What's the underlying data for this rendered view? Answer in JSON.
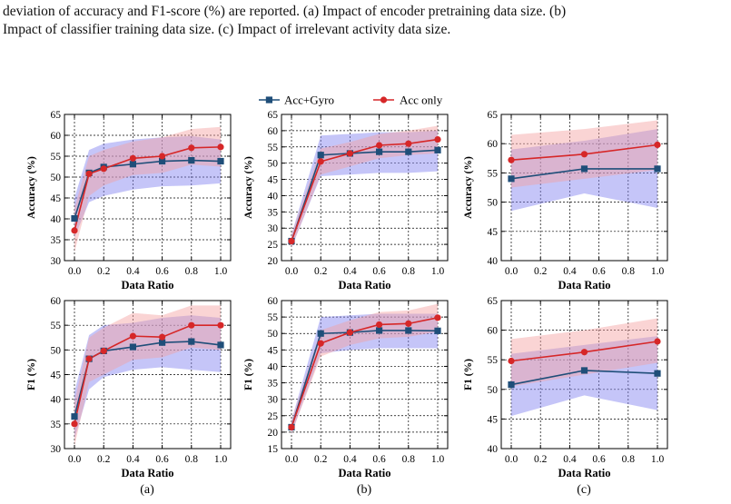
{
  "caption": {
    "line1": "deviation of accuracy and F1-score (%) are reported. (a) Impact of encoder pretraining data size. (b)",
    "line2": "Impact of classifier training data size. (c) Impact of irrelevant activity data size."
  },
  "colors": {
    "acc_gyro": "#1f4e79",
    "acc_only": "#d62728",
    "acc_gyro_band": "#7f7ff0",
    "acc_only_band": "#f4a0a0"
  },
  "legend": [
    "Acc+Gyro",
    "Acc only"
  ],
  "chart_data": [
    {
      "type": "line",
      "panel": "(a)",
      "metric": "accuracy",
      "xlabel": "Data Ratio",
      "ylabel": "Accuracy (%)",
      "x": [
        0.0,
        0.1,
        0.2,
        0.4,
        0.6,
        0.8,
        1.0
      ],
      "xticks": [
        0.0,
        0.2,
        0.4,
        0.6,
        0.8,
        1.0
      ],
      "xticklabels": [
        "0.0",
        "0.2",
        "0.4",
        "0.6",
        "0.8",
        "1.0"
      ],
      "ylim": [
        30,
        65
      ],
      "yticks": [
        30,
        35,
        40,
        45,
        50,
        55,
        60,
        65
      ],
      "series": [
        {
          "name": "Acc+Gyro",
          "values": [
            40.1,
            51.0,
            52.4,
            53.1,
            53.8,
            54.0,
            53.8
          ],
          "lower": [
            35.5,
            44.0,
            45.5,
            47.0,
            47.8,
            48.0,
            48.5
          ],
          "upper": [
            45.0,
            56.5,
            58.0,
            59.0,
            59.5,
            59.8,
            59.0
          ]
        },
        {
          "name": "Acc only",
          "values": [
            37.2,
            50.8,
            52.0,
            54.5,
            55.0,
            57.0,
            57.2
          ],
          "lower": [
            32.0,
            45.5,
            48.0,
            50.5,
            51.0,
            53.0,
            52.5
          ],
          "upper": [
            42.5,
            55.0,
            56.5,
            58.5,
            59.5,
            61.5,
            62.0
          ]
        }
      ]
    },
    {
      "type": "line",
      "panel": "(b)",
      "metric": "accuracy",
      "xlabel": "Data Ratio",
      "ylabel": "Accuracy (%)",
      "x": [
        0.0,
        0.2,
        0.4,
        0.6,
        0.8,
        1.0
      ],
      "xticks": [
        0.0,
        0.2,
        0.4,
        0.6,
        0.8,
        1.0
      ],
      "xticklabels": [
        "0.0",
        "0.2",
        "0.4",
        "0.6",
        "0.8",
        "1.0"
      ],
      "ylim": [
        20,
        65
      ],
      "yticks": [
        20,
        25,
        30,
        35,
        40,
        45,
        50,
        55,
        60,
        65
      ],
      "series": [
        {
          "name": "Acc+Gyro",
          "values": [
            26.0,
            52.5,
            53.0,
            53.5,
            53.5,
            54.0
          ],
          "lower": [
            24.0,
            46.0,
            46.5,
            47.0,
            47.0,
            47.5
          ],
          "upper": [
            28.0,
            58.5,
            59.0,
            59.5,
            59.5,
            60.0
          ]
        },
        {
          "name": "Acc only",
          "values": [
            26.0,
            50.5,
            53.0,
            55.5,
            56.0,
            57.3
          ],
          "lower": [
            24.0,
            46.5,
            49.0,
            51.5,
            52.5,
            53.0
          ],
          "upper": [
            28.0,
            54.5,
            56.5,
            59.0,
            60.0,
            61.5
          ]
        }
      ]
    },
    {
      "type": "line",
      "panel": "(c)",
      "metric": "accuracy",
      "xlabel": "Data Ratio",
      "ylabel": "Accuracy (%)",
      "x": [
        0.0,
        0.5,
        1.0
      ],
      "xticks": [
        0.0,
        0.2,
        0.4,
        0.6,
        0.8,
        1.0
      ],
      "xticklabels": [
        "0.0",
        "0.2",
        "0.4",
        "0.6",
        "0.8",
        "1.0"
      ],
      "ylim": [
        40,
        65
      ],
      "yticks": [
        40,
        45,
        50,
        55,
        60,
        65
      ],
      "series": [
        {
          "name": "Acc+Gyro",
          "values": [
            54.0,
            55.7,
            55.7
          ],
          "lower": [
            48.5,
            51.5,
            49.0
          ],
          "upper": [
            59.0,
            60.5,
            62.5
          ]
        },
        {
          "name": "Acc only",
          "values": [
            57.2,
            58.2,
            59.8
          ],
          "lower": [
            52.5,
            54.0,
            55.5
          ],
          "upper": [
            61.5,
            62.5,
            64.0
          ]
        }
      ]
    },
    {
      "type": "line",
      "panel": "(a)",
      "metric": "f1",
      "xlabel": "Data Ratio",
      "ylabel": "F1 (%)",
      "x": [
        0.0,
        0.1,
        0.2,
        0.4,
        0.6,
        0.8,
        1.0
      ],
      "xticks": [
        0.0,
        0.2,
        0.4,
        0.6,
        0.8,
        1.0
      ],
      "xticklabels": [
        "0.0",
        "0.2",
        "0.4",
        "0.6",
        "0.8",
        "1.0"
      ],
      "ylim": [
        30,
        60
      ],
      "yticks": [
        30,
        35,
        40,
        45,
        50,
        55,
        60
      ],
      "series": [
        {
          "name": "Acc+Gyro",
          "values": [
            36.5,
            48.2,
            49.8,
            50.6,
            51.5,
            51.7,
            51.0
          ],
          "lower": [
            32.0,
            42.0,
            44.5,
            46.0,
            46.5,
            46.0,
            45.5
          ],
          "upper": [
            41.5,
            53.0,
            55.0,
            55.5,
            56.5,
            57.0,
            56.5
          ]
        },
        {
          "name": "Acc only",
          "values": [
            35.0,
            48.2,
            49.8,
            52.8,
            52.6,
            55.0,
            55.0
          ],
          "lower": [
            30.5,
            43.5,
            45.0,
            48.0,
            48.5,
            50.5,
            50.0
          ],
          "upper": [
            39.5,
            52.5,
            54.5,
            57.5,
            57.0,
            59.0,
            59.0
          ]
        }
      ]
    },
    {
      "type": "line",
      "panel": "(b)",
      "metric": "f1",
      "xlabel": "Data Ratio",
      "ylabel": "F1 (%)",
      "x": [
        0.0,
        0.2,
        0.4,
        0.6,
        0.8,
        1.0
      ],
      "xticks": [
        0.0,
        0.2,
        0.4,
        0.6,
        0.8,
        1.0
      ],
      "xticklabels": [
        "0.0",
        "0.2",
        "0.4",
        "0.6",
        "0.8",
        "1.0"
      ],
      "ylim": [
        15,
        60
      ],
      "yticks": [
        15,
        20,
        25,
        30,
        35,
        40,
        45,
        50,
        55,
        60
      ],
      "series": [
        {
          "name": "Acc+Gyro",
          "values": [
            21.5,
            50.0,
            50.3,
            50.9,
            50.9,
            50.8
          ],
          "lower": [
            19.5,
            44.0,
            45.0,
            45.5,
            45.5,
            45.5
          ],
          "upper": [
            23.5,
            55.0,
            55.5,
            56.0,
            56.0,
            56.0
          ]
        },
        {
          "name": "Acc only",
          "values": [
            21.5,
            47.0,
            50.3,
            52.7,
            53.0,
            54.8
          ],
          "lower": [
            19.5,
            43.0,
            46.5,
            48.5,
            49.0,
            50.5
          ],
          "upper": [
            23.5,
            51.0,
            54.0,
            56.5,
            57.0,
            59.0
          ]
        }
      ]
    },
    {
      "type": "line",
      "panel": "(c)",
      "metric": "f1",
      "xlabel": "Data Ratio",
      "ylabel": "F1 (%)",
      "x": [
        0.0,
        0.5,
        1.0
      ],
      "xticks": [
        0.0,
        0.2,
        0.4,
        0.6,
        0.8,
        1.0
      ],
      "xticklabels": [
        "0.0",
        "0.2",
        "0.4",
        "0.6",
        "0.8",
        "1.0"
      ],
      "ylim": [
        40,
        65
      ],
      "yticks": [
        40,
        45,
        50,
        55,
        60,
        65
      ],
      "series": [
        {
          "name": "Acc+Gyro",
          "values": [
            50.8,
            53.2,
            52.7
          ],
          "lower": [
            45.5,
            49.0,
            46.5
          ],
          "upper": [
            56.0,
            57.5,
            59.0
          ]
        },
        {
          "name": "Acc only",
          "values": [
            54.8,
            56.3,
            58.1
          ],
          "lower": [
            50.5,
            52.5,
            54.5
          ],
          "upper": [
            58.5,
            60.0,
            62.0
          ]
        }
      ]
    }
  ],
  "panel_labels": [
    "(a)",
    "(b)",
    "(c)"
  ]
}
